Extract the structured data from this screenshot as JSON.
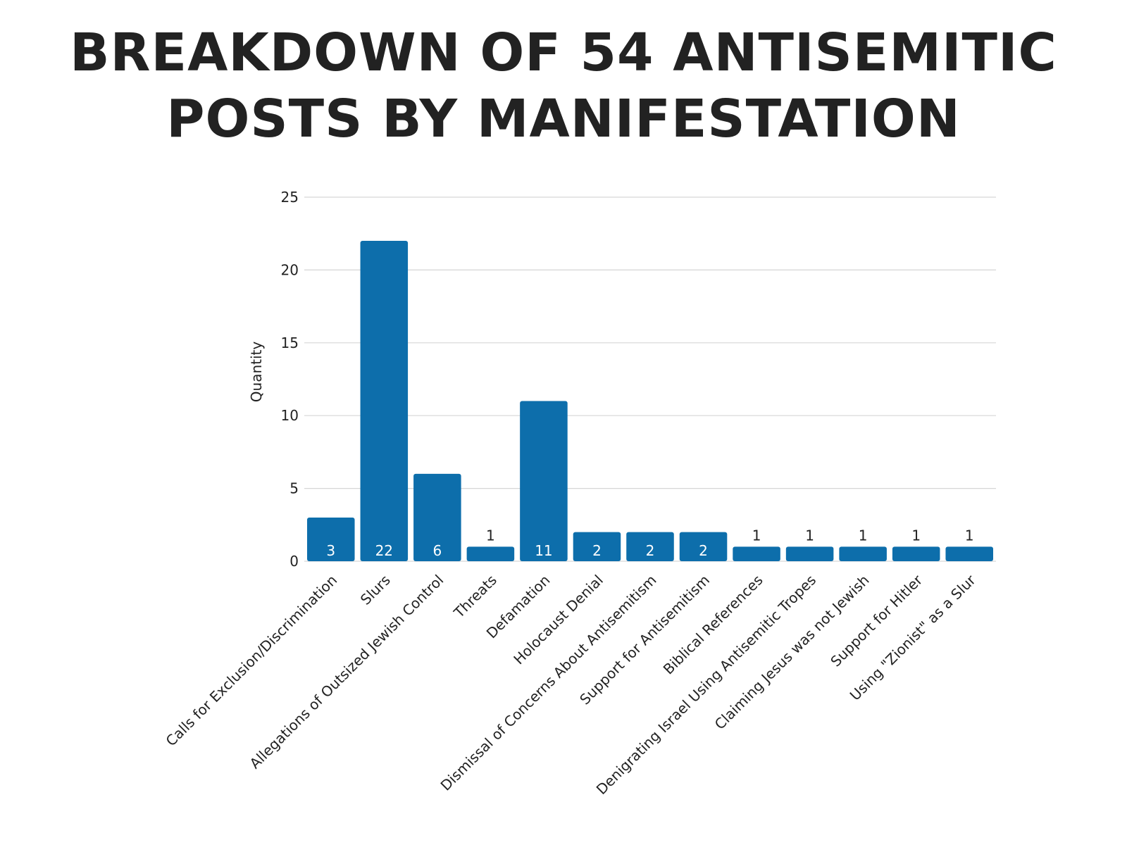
{
  "chart_data": {
    "type": "bar",
    "title_line1": "BREAKDOWN OF 54 ANTISEMITIC",
    "title_line2": "POSTS BY MANIFESTATION",
    "ylabel": "Quantity",
    "xlabel": "",
    "ylim": [
      0,
      25
    ],
    "yticks": [
      "0",
      "5",
      "10",
      "15",
      "20",
      "25"
    ],
    "grid": true,
    "bar_color": "#0d6eab",
    "categories": [
      "Calls for Exclusion/Discrimination",
      "Slurs",
      "Allegations of Outsized Jewish Control",
      "Threats",
      "Defamation",
      "Holocaust Denial",
      "Dismissal of Concerns About Antisemitism",
      "Support for Antisemitism",
      "Biblical References",
      "Denigrating Israel Using Antisemitic Tropes",
      "Claiming Jesus was not Jewish",
      "Support for Hitler",
      "Using \"Zionist\" as a Slur"
    ],
    "values": [
      3,
      22,
      6,
      1,
      11,
      2,
      2,
      2,
      1,
      1,
      1,
      1,
      1
    ],
    "value_labels": [
      "3",
      "22",
      "6",
      "1",
      "11",
      "2",
      "2",
      "2",
      "1",
      "1",
      "1",
      "1",
      "1"
    ]
  }
}
